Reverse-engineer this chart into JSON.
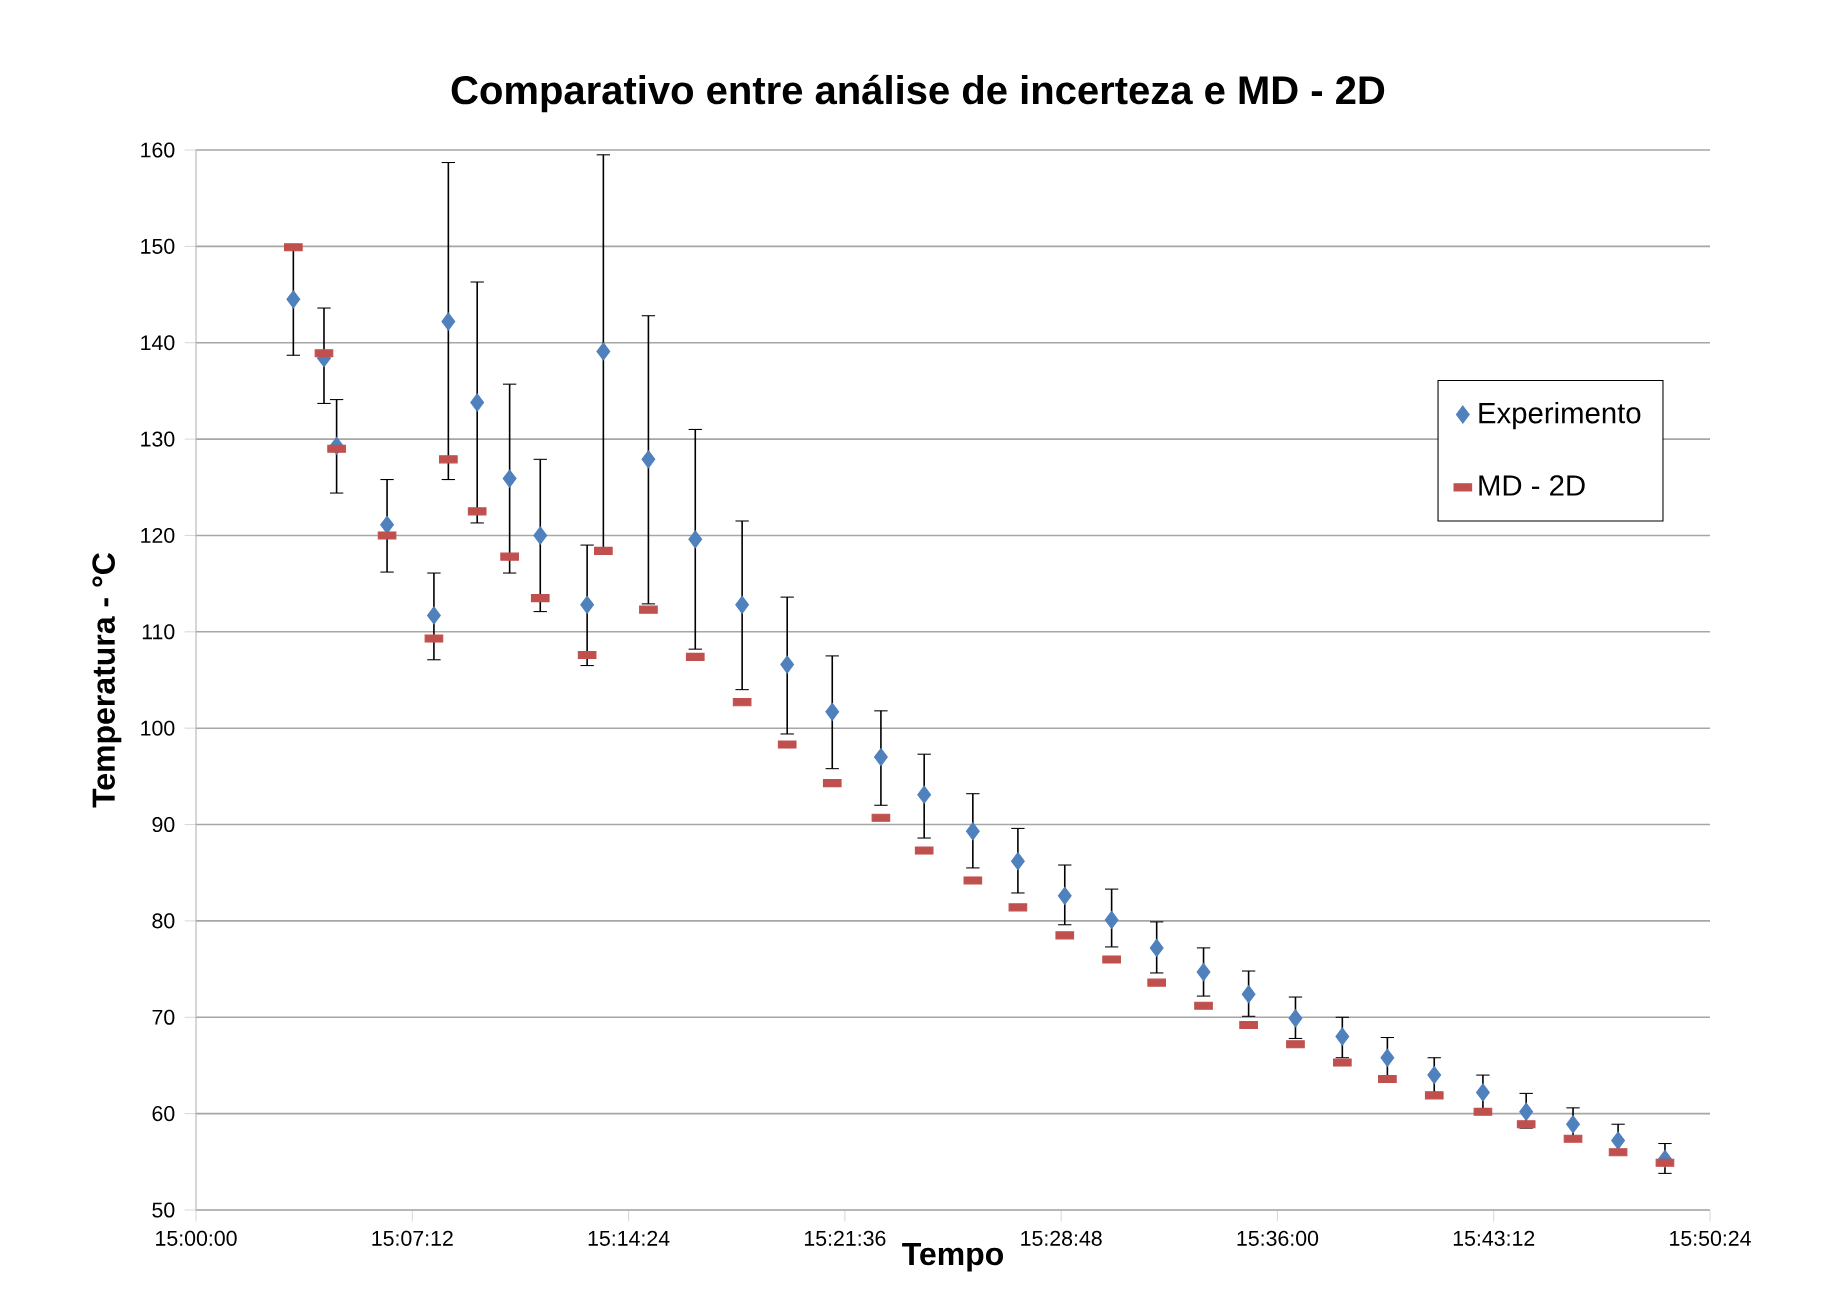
{
  "chart_data": {
    "type": "scatter",
    "title": "Comparativo entre análise de incerteza e MD - 2D",
    "xlabel": "Tempo",
    "ylabel": "Temperatura - °C",
    "x": [
      15.054,
      15.071,
      15.078,
      15.106,
      15.132,
      15.14,
      15.156,
      15.174,
      15.191,
      15.217,
      15.226,
      15.251,
      15.277,
      15.303,
      15.328,
      15.353,
      15.38,
      15.404,
      15.431,
      15.456,
      15.482,
      15.508,
      15.533,
      15.559,
      15.584,
      15.61,
      15.636,
      15.661,
      15.687,
      15.714,
      15.738,
      15.764,
      15.789,
      15.815
    ],
    "series": [
      {
        "name": "Experimento",
        "color": "#4f81bd",
        "marker": "diamond",
        "values": [
          144.5,
          138.4,
          129.3,
          121.1,
          111.7,
          142.2,
          133.8,
          125.9,
          120.0,
          112.8,
          139.1,
          127.9,
          119.6,
          112.8,
          106.6,
          101.7,
          97.0,
          93.1,
          89.3,
          86.2,
          82.6,
          80.1,
          77.2,
          74.7,
          72.4,
          69.9,
          68.0,
          65.8,
          64.0,
          62.2,
          60.2,
          58.9,
          57.2,
          55.3
        ],
        "errors": [
          [
            138.7,
            150.0
          ],
          [
            133.7,
            143.6
          ],
          [
            124.4,
            134.1
          ],
          [
            116.2,
            125.8
          ],
          [
            107.1,
            116.1
          ],
          [
            125.8,
            158.7
          ],
          [
            121.3,
            146.3
          ],
          [
            116.1,
            135.7
          ],
          [
            112.1,
            127.9
          ],
          [
            106.5,
            119.0
          ],
          [
            118.6,
            159.5
          ],
          [
            112.9,
            142.8
          ],
          [
            108.2,
            131.0
          ],
          [
            104.0,
            121.5
          ],
          [
            99.4,
            113.6
          ],
          [
            95.8,
            107.5
          ],
          [
            92.0,
            101.8
          ],
          [
            88.6,
            97.3
          ],
          [
            85.5,
            93.2
          ],
          [
            82.9,
            89.6
          ],
          [
            79.6,
            85.8
          ],
          [
            77.3,
            83.3
          ],
          [
            74.6,
            79.9
          ],
          [
            72.2,
            77.2
          ],
          [
            70.1,
            74.8
          ],
          [
            67.8,
            72.1
          ],
          [
            65.8,
            70.0
          ],
          [
            63.7,
            67.9
          ],
          [
            62.2,
            65.8
          ],
          [
            60.5,
            64.0
          ],
          [
            58.5,
            62.1
          ],
          [
            57.5,
            60.6
          ],
          [
            55.9,
            58.9
          ],
          [
            53.8,
            56.9
          ]
        ]
      },
      {
        "name": "MD - 2D",
        "color": "#c0504d",
        "marker": "square",
        "values": [
          149.9,
          138.9,
          129.0,
          120.0,
          109.3,
          127.9,
          122.5,
          117.8,
          113.5,
          107.6,
          118.4,
          112.3,
          107.4,
          102.7,
          98.3,
          94.3,
          90.7,
          87.3,
          84.2,
          81.4,
          78.5,
          76.0,
          73.6,
          71.2,
          69.2,
          67.2,
          65.3,
          63.6,
          61.9,
          60.2,
          58.9,
          57.4,
          56.0,
          54.9
        ]
      }
    ],
    "xlim": [
      15.0,
      15.84
    ],
    "xticks": [
      {
        "value": 15.0,
        "label": "15:00:00"
      },
      {
        "value": 15.12,
        "label": "15:07:12"
      },
      {
        "value": 15.24,
        "label": "15:14:24"
      },
      {
        "value": 15.36,
        "label": "15:21:36"
      },
      {
        "value": 15.48,
        "label": "15:28:48"
      },
      {
        "value": 15.6,
        "label": "15:36:00"
      },
      {
        "value": 15.72,
        "label": "15:43:12"
      },
      {
        "value": 15.84,
        "label": "15:50:24"
      }
    ],
    "ylim": [
      50,
      160
    ],
    "yticks": [
      50,
      60,
      70,
      80,
      90,
      100,
      110,
      120,
      130,
      140,
      150,
      160
    ],
    "grid": "y",
    "legend": "right"
  }
}
